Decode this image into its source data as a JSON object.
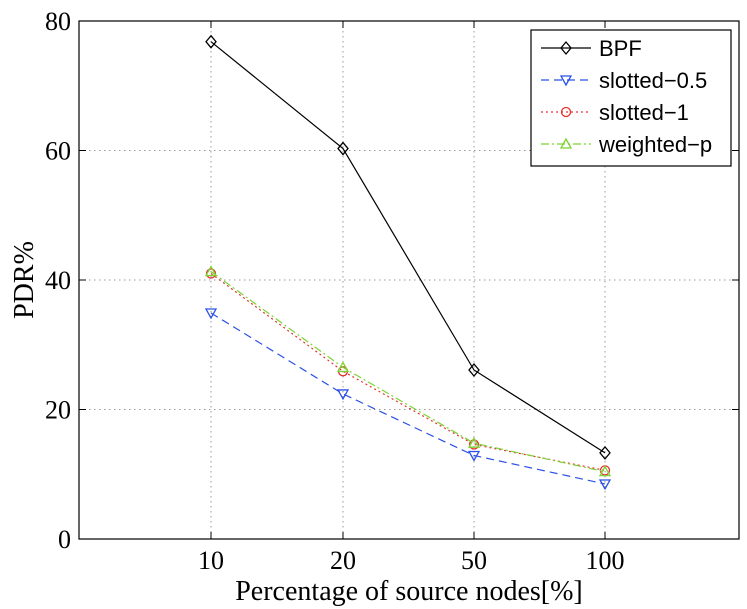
{
  "chart_data": {
    "type": "line",
    "title": "",
    "xlabel": "Percentage of source nodes[%]",
    "ylabel": "PDR%",
    "categories": [
      "10",
      "20",
      "50",
      "100"
    ],
    "ylim": [
      0,
      80
    ],
    "yticks": [
      0,
      20,
      40,
      60,
      80
    ],
    "grid": true,
    "legend_position": "top-right",
    "series": [
      {
        "name": "BPF",
        "values": [
          76.8,
          60.3,
          26.1,
          13.3
        ],
        "color": "#000000",
        "marker": "diamond",
        "dash": "solid"
      },
      {
        "name": "slotted−0.5",
        "values": [
          34.9,
          22.4,
          12.9,
          8.5
        ],
        "color": "#2b50e8",
        "marker": "triangle-down",
        "dash": "dashed"
      },
      {
        "name": "slotted−1",
        "values": [
          41.0,
          25.9,
          14.6,
          10.6
        ],
        "color": "#e83030",
        "marker": "circle",
        "dash": "dotted"
      },
      {
        "name": "weighted−p",
        "values": [
          41.3,
          26.5,
          14.8,
          10.4
        ],
        "color": "#7cd332",
        "marker": "triangle-up",
        "dash": "dashdot"
      }
    ]
  }
}
